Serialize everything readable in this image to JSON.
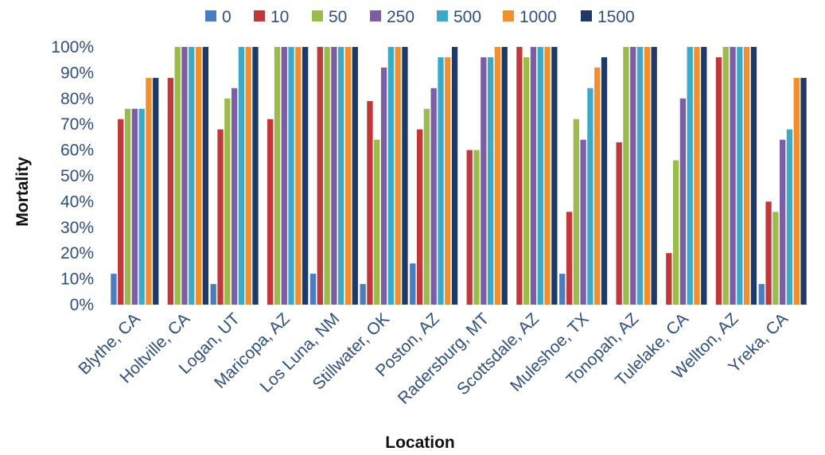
{
  "chart_data": {
    "type": "bar",
    "title": "",
    "xlabel": "Location",
    "ylabel": "Mortality",
    "ylim": [
      0,
      100
    ],
    "y_ticks": [
      "0%",
      "10%",
      "20%",
      "30%",
      "40%",
      "50%",
      "60%",
      "70%",
      "80%",
      "90%",
      "100%"
    ],
    "y_tick_values": [
      0,
      10,
      20,
      30,
      40,
      50,
      60,
      70,
      80,
      90,
      100
    ],
    "grid": false,
    "legend_position": "top",
    "categories": [
      "Blythe, CA",
      "Holtville, CA",
      "Logan, UT",
      "Maricopa, AZ",
      "Los Luna, NM",
      "Stillwater, OK",
      "Poston, AZ",
      "Radersburg, MT",
      "Scottsdale, AZ",
      "Muleshoe, TX",
      "Tonopah, AZ",
      "Tulelake, CA",
      "Wellton, AZ",
      "Yreka, CA"
    ],
    "series": [
      {
        "name": "0",
        "color": "#4a7cc0",
        "values": [
          12,
          0,
          8,
          0,
          12,
          8,
          16,
          0,
          0,
          12,
          0,
          0,
          0,
          8
        ]
      },
      {
        "name": "10",
        "color": "#c0383a",
        "values": [
          72,
          88,
          68,
          72,
          100,
          79,
          68,
          60,
          100,
          36,
          63,
          20,
          96,
          40
        ]
      },
      {
        "name": "50",
        "color": "#9bbb4a",
        "values": [
          76,
          100,
          80,
          100,
          100,
          64,
          76,
          60,
          96,
          72,
          100,
          56,
          100,
          36
        ]
      },
      {
        "name": "250",
        "color": "#7c5ea6",
        "values": [
          76,
          100,
          84,
          100,
          100,
          92,
          84,
          96,
          100,
          64,
          100,
          80,
          100,
          64
        ]
      },
      {
        "name": "500",
        "color": "#3aaac8",
        "values": [
          76,
          100,
          100,
          100,
          100,
          100,
          96,
          96,
          100,
          84,
          100,
          100,
          100,
          68
        ]
      },
      {
        "name": "1000",
        "color": "#f28e2b",
        "values": [
          88,
          100,
          100,
          100,
          100,
          100,
          96,
          100,
          100,
          92,
          100,
          100,
          100,
          88
        ]
      },
      {
        "name": "1500",
        "color": "#1f3a68",
        "values": [
          88,
          100,
          100,
          100,
          100,
          100,
          100,
          100,
          100,
          96,
          100,
          100,
          100,
          88
        ]
      }
    ]
  }
}
